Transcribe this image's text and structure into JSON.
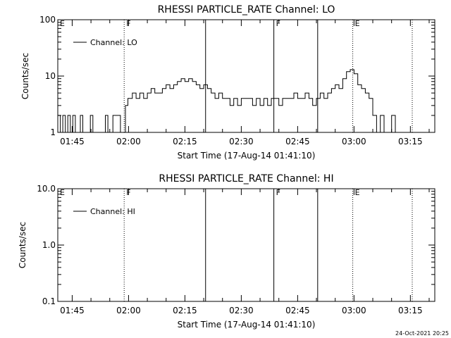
{
  "timestamp": "24-Oct-2021 20:25",
  "chart_data": [
    {
      "type": "line",
      "title": "RHESSI PARTICLE_RATE Channel: LO",
      "ylabel": "Counts/sec",
      "xlabel": "Start Time (17-Aug-14 01:41:10)",
      "yscale": "log",
      "ylim": [
        1,
        100
      ],
      "ytick_values": [
        1,
        10,
        100
      ],
      "ytick_labels": [
        "1",
        "10",
        "100"
      ],
      "xlim": [
        "01:41:10",
        "03:21:30"
      ],
      "xtick_values": [
        "01:45",
        "02:00",
        "02:15",
        "02:30",
        "02:45",
        "03:00",
        "03:15"
      ],
      "xtick_labels": [
        "01:45",
        "02:00",
        "02:15",
        "02:30",
        "02:45",
        "03:00",
        "03:15"
      ],
      "legend": {
        "position": "top-left",
        "entries": [
          "Channel: LO"
        ]
      },
      "markers": [
        {
          "time": "01:41:10",
          "label": "E",
          "style": "none"
        },
        {
          "time": "01:58:50",
          "label": "F",
          "style": "dotted"
        },
        {
          "time": "02:20:30",
          "label": "",
          "style": "solid"
        },
        {
          "time": "02:38:40",
          "label": "F",
          "style": "solid"
        },
        {
          "time": "02:50:20",
          "label": "",
          "style": "solid"
        },
        {
          "time": "02:59:40",
          "label": "E",
          "style": "dotted"
        },
        {
          "time": "03:15:30",
          "label": "",
          "style": "dotted"
        }
      ],
      "series": [
        {
          "x": [
            "01:41:10",
            "01:41:50",
            "01:42:30",
            "01:43:10",
            "01:43:50",
            "01:44:30",
            "01:45:10",
            "01:45:50",
            "01:46:30",
            "01:47:10",
            "01:47:50",
            "01:48:30",
            "01:49:10",
            "01:49:50",
            "01:50:30",
            "01:51:10",
            "01:51:50",
            "01:52:30",
            "01:53:10",
            "01:53:50",
            "01:54:30",
            "01:55:10",
            "01:55:50",
            "01:56:30",
            "01:57:10",
            "01:57:50",
            "01:58:30",
            "01:59:10",
            "01:59:50",
            "02:01:00",
            "02:02:00",
            "02:03:00",
            "02:04:00",
            "02:05:00",
            "02:06:00",
            "02:07:00",
            "02:08:00",
            "02:09:00",
            "02:10:00",
            "02:11:00",
            "02:12:00",
            "02:13:00",
            "02:14:00",
            "02:15:00",
            "02:16:00",
            "02:17:00",
            "02:18:00",
            "02:19:00",
            "02:20:00",
            "02:21:00",
            "02:22:00",
            "02:23:00",
            "02:24:00",
            "02:25:00",
            "02:26:00",
            "02:27:00",
            "02:28:00",
            "02:29:00",
            "02:30:00",
            "02:31:00",
            "02:32:00",
            "02:33:00",
            "02:34:00",
            "02:35:00",
            "02:36:00",
            "02:37:00",
            "02:38:00",
            "02:39:00",
            "02:40:00",
            "02:41:00",
            "02:42:00",
            "02:43:00",
            "02:44:00",
            "02:45:00",
            "02:46:00",
            "02:47:00",
            "02:48:00",
            "02:49:00",
            "02:50:00",
            "02:51:00",
            "02:52:00",
            "02:53:00",
            "02:54:00",
            "02:55:00",
            "02:56:00",
            "02:57:00",
            "02:58:00",
            "02:59:00",
            "03:00:00",
            "03:01:00",
            "03:02:00",
            "03:03:00",
            "03:04:00",
            "03:05:00",
            "03:06:00",
            "03:07:00",
            "03:08:00",
            "03:09:00",
            "03:10:00",
            "03:11:00",
            "03:12:00",
            "03:13:00",
            "03:14:00"
          ],
          "values": [
            2,
            1,
            2,
            1,
            2,
            1,
            2,
            1,
            1,
            2,
            1,
            1,
            1,
            2,
            1,
            1,
            1,
            1,
            1,
            2,
            1,
            1,
            2,
            2,
            2,
            1,
            1,
            3,
            4,
            5,
            4,
            5,
            4,
            5,
            6,
            5,
            5,
            6,
            7,
            6,
            7,
            8,
            9,
            8,
            9,
            8,
            7,
            6,
            7,
            6,
            5,
            4,
            5,
            4,
            4,
            3,
            4,
            3,
            4,
            4,
            4,
            3,
            4,
            3,
            4,
            3,
            4,
            4,
            3,
            4,
            4,
            4,
            5,
            4,
            4,
            5,
            4,
            3,
            4,
            5,
            4,
            5,
            6,
            7,
            6,
            9,
            12,
            13,
            11,
            7,
            6,
            5,
            4,
            2,
            1,
            2,
            1,
            1,
            2,
            1,
            1,
            1,
            1
          ]
        }
      ]
    },
    {
      "type": "line",
      "title": "RHESSI PARTICLE_RATE Channel: HI",
      "ylabel": "Counts/sec",
      "xlabel": "Start Time (17-Aug-14 01:41:10)",
      "yscale": "log",
      "ylim": [
        0.1,
        10
      ],
      "ytick_values": [
        0.1,
        1,
        10
      ],
      "ytick_labels": [
        "0.1",
        "1.0",
        "10.0"
      ],
      "xlim": [
        "01:41:10",
        "03:21:30"
      ],
      "xtick_values": [
        "01:45",
        "02:00",
        "02:15",
        "02:30",
        "02:45",
        "03:00",
        "03:15"
      ],
      "xtick_labels": [
        "01:45",
        "02:00",
        "02:15",
        "02:30",
        "02:45",
        "03:00",
        "03:15"
      ],
      "legend": {
        "position": "top-left",
        "entries": [
          "Channel: HI"
        ]
      },
      "markers": [
        {
          "time": "01:41:10",
          "label": "E",
          "style": "none"
        },
        {
          "time": "01:58:50",
          "label": "F",
          "style": "dotted"
        },
        {
          "time": "02:20:30",
          "label": "",
          "style": "solid"
        },
        {
          "time": "02:38:40",
          "label": "F",
          "style": "solid"
        },
        {
          "time": "02:50:20",
          "label": "",
          "style": "solid"
        },
        {
          "time": "02:59:40",
          "label": "E",
          "style": "dotted"
        },
        {
          "time": "03:15:30",
          "label": "",
          "style": "dotted"
        }
      ],
      "series": [
        {
          "x": [],
          "values": []
        }
      ]
    }
  ]
}
